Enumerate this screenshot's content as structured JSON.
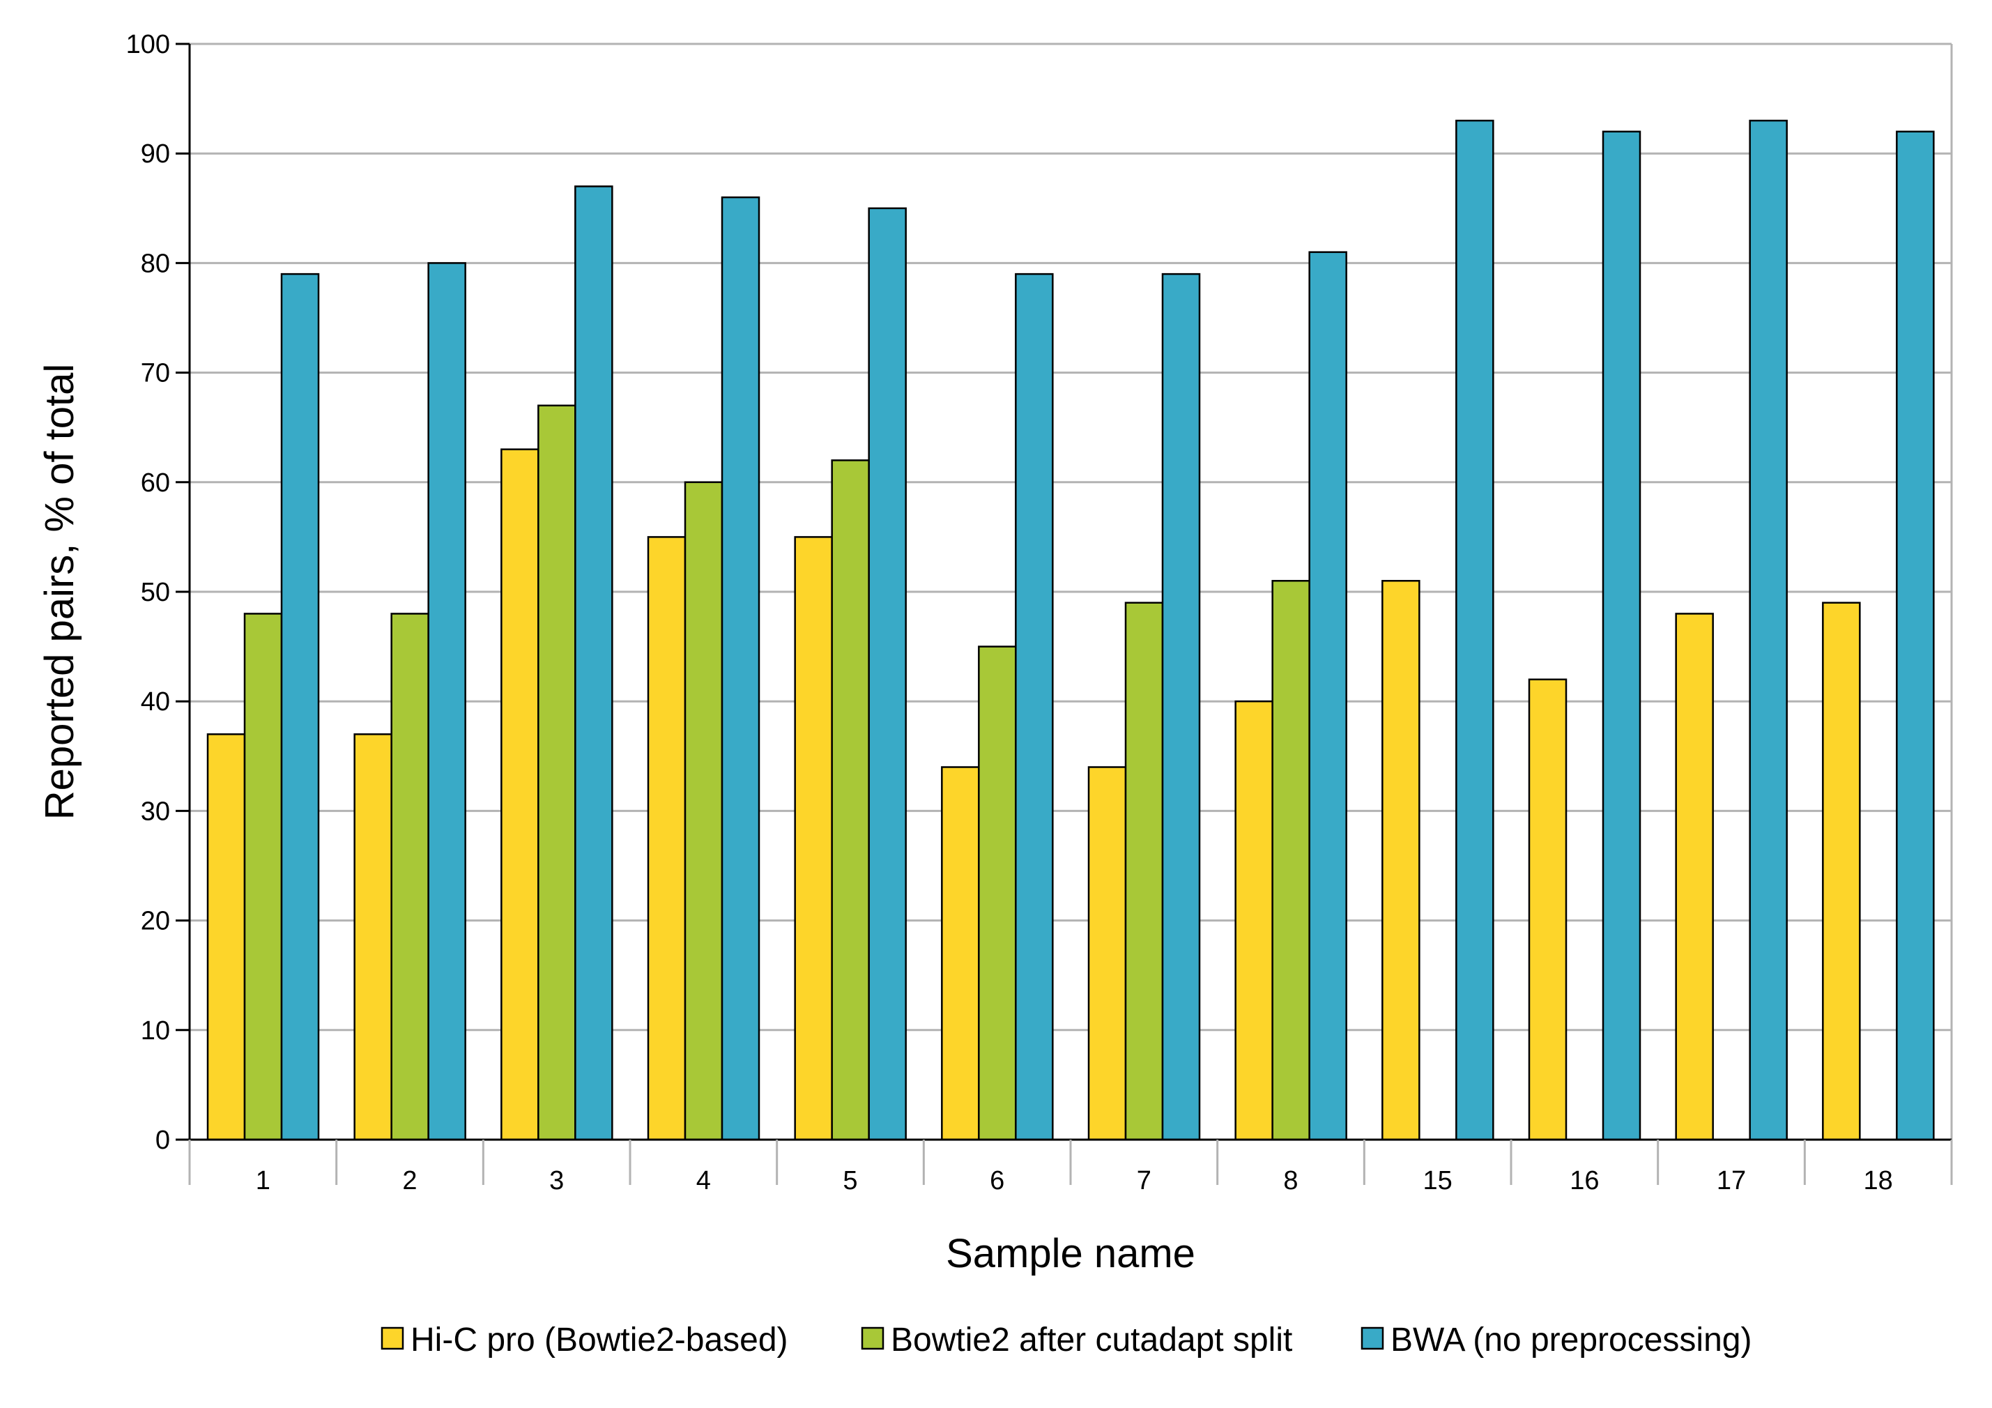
{
  "chart_data": {
    "type": "bar",
    "title": "",
    "xlabel": "Sample name",
    "ylabel": "Reported pairs, % of total",
    "ylim": [
      0,
      100
    ],
    "yticks": [
      0,
      10,
      20,
      30,
      40,
      50,
      60,
      70,
      80,
      90,
      100
    ],
    "grid": true,
    "legend_position": "bottom",
    "categories": [
      "1",
      "2",
      "3",
      "4",
      "5",
      "6",
      "7",
      "8",
      "15",
      "16",
      "17",
      "18"
    ],
    "series": [
      {
        "name": "Hi-C pro (Bowtie2-based)",
        "color": "#FDD52A",
        "values": [
          37,
          37,
          63,
          55,
          55,
          34,
          34,
          40,
          51,
          42,
          48,
          49
        ]
      },
      {
        "name": "Bowtie2 after cutadapt split",
        "color": "#A8C837",
        "values": [
          48,
          48,
          67,
          60,
          62,
          45,
          49,
          51,
          null,
          null,
          null,
          null
        ]
      },
      {
        "name": "BWA (no preprocessing)",
        "color": "#39AAC7",
        "values": [
          79,
          80,
          87,
          86,
          85,
          79,
          79,
          81,
          93,
          92,
          93,
          92
        ]
      }
    ]
  }
}
